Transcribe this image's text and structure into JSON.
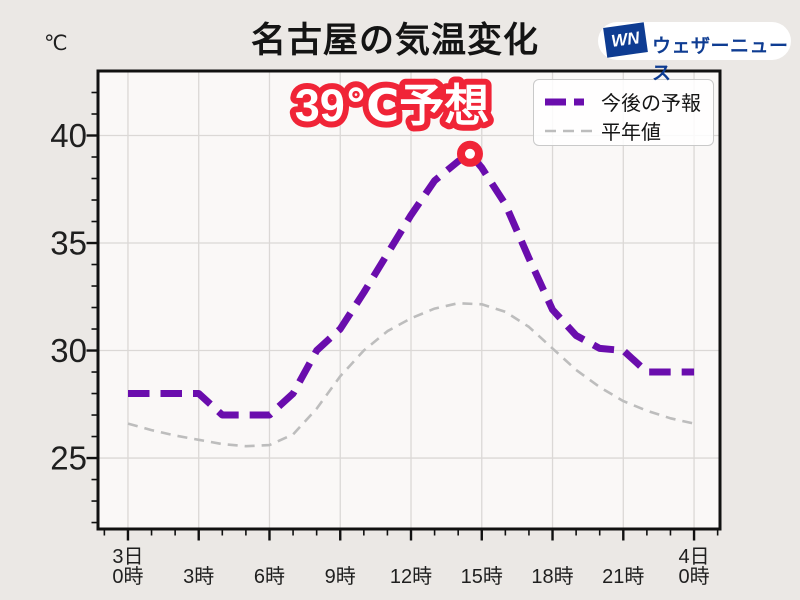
{
  "page": {
    "background_color": "#EBE8E5",
    "unit_label": "℃",
    "title": "名古屋の気温変化"
  },
  "logo": {
    "badge_text": "WN",
    "brand_text": "ウェザーニュース",
    "blue": "#0E3C92",
    "pill_bg": "#FFFFFF"
  },
  "legend": {
    "items": [
      {
        "label": "今後の予報",
        "color": "#6A0DAD",
        "stroke_width": 7,
        "dash": "21 8 10 40"
      },
      {
        "label": "平年値",
        "color": "#BDBDBD",
        "stroke_width": 2.6,
        "dash": "11 7"
      }
    ]
  },
  "chart_data": {
    "type": "line",
    "title": "名古屋の気温変化",
    "ylabel": "℃",
    "xlabel": "",
    "grid": true,
    "xlim": [
      -1.27,
      25.1
    ],
    "ylim": [
      21.7,
      43.0
    ],
    "colors": {
      "plot_bg": "#FAF8F7",
      "grid": "#DBD8D6",
      "frame": "#111111",
      "tick_label": "#1f1f1f"
    },
    "x_axis": {
      "major_step_hours": 3,
      "minor_step_hours": 1,
      "tick_labels": [
        {
          "hour": 0,
          "text": "3日\n0時"
        },
        {
          "hour": 3,
          "text": "3時"
        },
        {
          "hour": 6,
          "text": "6時"
        },
        {
          "hour": 9,
          "text": "9時"
        },
        {
          "hour": 12,
          "text": "12時"
        },
        {
          "hour": 15,
          "text": "15時"
        },
        {
          "hour": 18,
          "text": "18時"
        },
        {
          "hour": 21,
          "text": "21時"
        },
        {
          "hour": 24,
          "text": "4日\n0時"
        }
      ]
    },
    "y_axis": {
      "ticks": [
        25,
        30,
        35,
        40
      ],
      "minor_step": 1
    },
    "series": [
      {
        "name": "今後の予報",
        "color": "#6A0DAD",
        "line_style": "dashed",
        "stroke_width": 7,
        "dash": "21.5 11",
        "points": [
          [
            0,
            28
          ],
          [
            1,
            28
          ],
          [
            2,
            28
          ],
          [
            3,
            28
          ],
          [
            4,
            27
          ],
          [
            5,
            27
          ],
          [
            6,
            27
          ],
          [
            7,
            28
          ],
          [
            8,
            30
          ],
          [
            9,
            31
          ],
          [
            10,
            32.7
          ],
          [
            11,
            34.5
          ],
          [
            12,
            36.3
          ],
          [
            13,
            37.9
          ],
          [
            14,
            38.8
          ],
          [
            14.5,
            39.15
          ],
          [
            15,
            38.5
          ],
          [
            16,
            36.8
          ],
          [
            17,
            34.3
          ],
          [
            18,
            31.9
          ],
          [
            19,
            30.7
          ],
          [
            20,
            30.1
          ],
          [
            21,
            30
          ],
          [
            22,
            29
          ],
          [
            23,
            29
          ],
          [
            24,
            29
          ]
        ]
      },
      {
        "name": "平年値",
        "color": "#BDBDBD",
        "line_style": "dashed",
        "stroke_width": 2.6,
        "dash": "10 7",
        "points": [
          [
            0,
            26.6
          ],
          [
            1,
            26.3
          ],
          [
            2,
            26.05
          ],
          [
            3,
            25.85
          ],
          [
            4,
            25.65
          ],
          [
            5,
            25.55
          ],
          [
            6,
            25.6
          ],
          [
            7,
            26.1
          ],
          [
            8,
            27.3
          ],
          [
            9,
            28.8
          ],
          [
            10,
            30.0
          ],
          [
            11,
            30.9
          ],
          [
            12,
            31.5
          ],
          [
            13,
            31.95
          ],
          [
            14,
            32.2
          ],
          [
            15,
            32.15
          ],
          [
            16,
            31.8
          ],
          [
            17,
            31.1
          ],
          [
            18,
            30.1
          ],
          [
            19,
            29.1
          ],
          [
            20,
            28.3
          ],
          [
            21,
            27.65
          ],
          [
            22,
            27.2
          ],
          [
            23,
            26.85
          ],
          [
            24,
            26.6
          ]
        ]
      }
    ],
    "peak_marker": {
      "hour": 14.5,
      "value": 39.15,
      "ring_color": "#F02437",
      "fill": "#FFFFFF"
    },
    "annotation": {
      "text": "39℃予想",
      "fill": "#FFFFFF",
      "outline": "#F02437"
    }
  }
}
